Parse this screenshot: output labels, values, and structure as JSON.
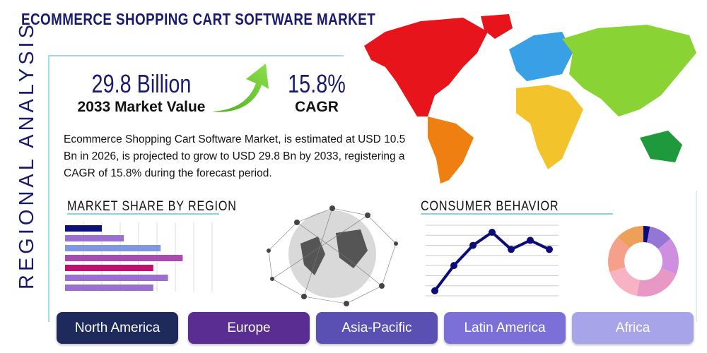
{
  "title": "ECOMMERCE SHOPPING CART SOFTWARE MARKET",
  "side_label": "REGIONAL ANALYSIS",
  "kpis": {
    "market_value": "29.8 Billion",
    "market_value_label": "2033 Market Value",
    "cagr": "15.8%",
    "cagr_label": "CAGR"
  },
  "description": "Ecommerce Shopping Cart Software Market, is estimated at USD 10.5 Bn in 2026, is projected to grow to USD 29.8 Bn by 2033, registering a CAGR of 15.8% during the forecast period.",
  "sections": {
    "market_share": "MARKET SHARE BY REGION",
    "consumer": "CONSUMER BEHAVIOR"
  },
  "regions": [
    {
      "label": "North America",
      "color": "#1e2a5c"
    },
    {
      "label": "Europe",
      "color": "#5a2d93"
    },
    {
      "label": "Asia-Pacific",
      "color": "#5a4fb3"
    },
    {
      "label": "Latin America",
      "color": "#7c70d8"
    },
    {
      "label": "Africa",
      "color": "#a8a4ea"
    }
  ],
  "chart_data": [
    {
      "type": "bar",
      "orientation": "horizontal",
      "values": [
        2,
        3.2,
        5.2,
        6.4,
        4.8,
        5.6,
        4.8
      ],
      "xlim": [
        0,
        8
      ],
      "grid": true,
      "colors": [
        "#0f0f7a",
        "#9a6fd0",
        "#7f97e0",
        "#a84bb0",
        "#c0106e",
        "#9a6fd0",
        "#9a6fd0"
      ]
    },
    {
      "type": "line",
      "values": [
        0.5,
        3,
        5,
        6.3,
        4.6,
        5.5,
        4.6
      ],
      "ylim": [
        0,
        7
      ],
      "grid": true,
      "color": "#0c0c78"
    },
    {
      "type": "pie",
      "donut": true,
      "values": [
        3,
        11,
        17,
        22,
        17,
        17,
        13
      ],
      "colors": [
        "#0c0c78",
        "#9575d6",
        "#cf8fe0",
        "#e898c4",
        "#f7b2c4",
        "#f4a08a",
        "#eca05a"
      ]
    }
  ]
}
